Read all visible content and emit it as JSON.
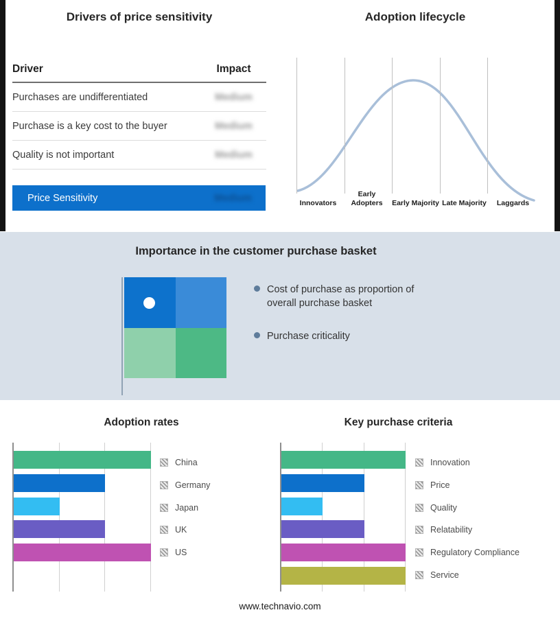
{
  "drivers_panel": {
    "title": "Drivers of price sensitivity",
    "columns": {
      "driver": "Driver",
      "impact": "Impact"
    },
    "rows": [
      {
        "driver": "Purchases are undifferentiated",
        "impact": "Medium"
      },
      {
        "driver": "Purchase is a key cost to the buyer",
        "impact": "Medium"
      },
      {
        "driver": "Quality is not important",
        "impact": "Medium"
      }
    ],
    "summary_row": {
      "label": "Price Sensitivity",
      "impact": "Medium"
    },
    "summary_color": "#0d70cb",
    "impact_values_blurred": true
  },
  "lifecycle_panel": {
    "title": "Adoption lifecycle",
    "stages": [
      "Innovators",
      "Early Adopters",
      "Early Majority",
      "Late Majority",
      "Laggards"
    ],
    "curve_color": "#a9bfd9"
  },
  "basket_panel": {
    "title": "Importance in the customer purchase basket",
    "bullets": [
      "Cost of purchase as proportion of overall purchase basket",
      "Purchase criticality"
    ],
    "background": "#d8e0e9",
    "quadrant_colors": {
      "top_left": "#0d72cc",
      "top_right": "#3a8bd8",
      "bottom_left": "#8fd0ab",
      "bottom_right": "#4db985"
    }
  },
  "footer": {
    "url": "www.technavio.com"
  },
  "chart_data": [
    {
      "type": "line",
      "title": "Adoption lifecycle",
      "x": [
        "Innovators",
        "Early Adopters",
        "Early Majority",
        "Late Majority",
        "Laggards"
      ],
      "values": [
        0.08,
        0.55,
        1.0,
        0.55,
        0.05
      ],
      "note": "bell-shaped adoption curve peaking at Early Majority",
      "ylim": [
        0,
        1
      ],
      "grid": "vertical stage separators",
      "line_color": "#a9bfd9"
    },
    {
      "type": "bar",
      "orientation": "horizontal",
      "title": "Adoption rates",
      "categories": [
        "China",
        "Germany",
        "Japan",
        "UK",
        "US"
      ],
      "values": [
        3,
        2,
        1,
        2,
        3
      ],
      "colors": [
        "#44b787",
        "#0d70cb",
        "#33bdf2",
        "#6a5dc4",
        "#bf52b2"
      ],
      "xlim": [
        0,
        3
      ],
      "xlabel": "",
      "ylabel": "",
      "grid": true,
      "legend_position": "right",
      "legend_swatch": "gray-hatched"
    },
    {
      "type": "bar",
      "orientation": "horizontal",
      "title": "Key purchase criteria",
      "categories": [
        "Innovation",
        "Price",
        "Quality",
        "Relatability",
        "Regulatory Compliance",
        "Service"
      ],
      "values": [
        3,
        2,
        1,
        2,
        3,
        3
      ],
      "colors": [
        "#44b787",
        "#0d70cb",
        "#33bdf2",
        "#6a5dc4",
        "#bf52b2",
        "#b4b446"
      ],
      "xlim": [
        0,
        3
      ],
      "xlabel": "",
      "ylabel": "",
      "grid": true,
      "legend_position": "right",
      "legend_swatch": "gray-hatched"
    }
  ]
}
